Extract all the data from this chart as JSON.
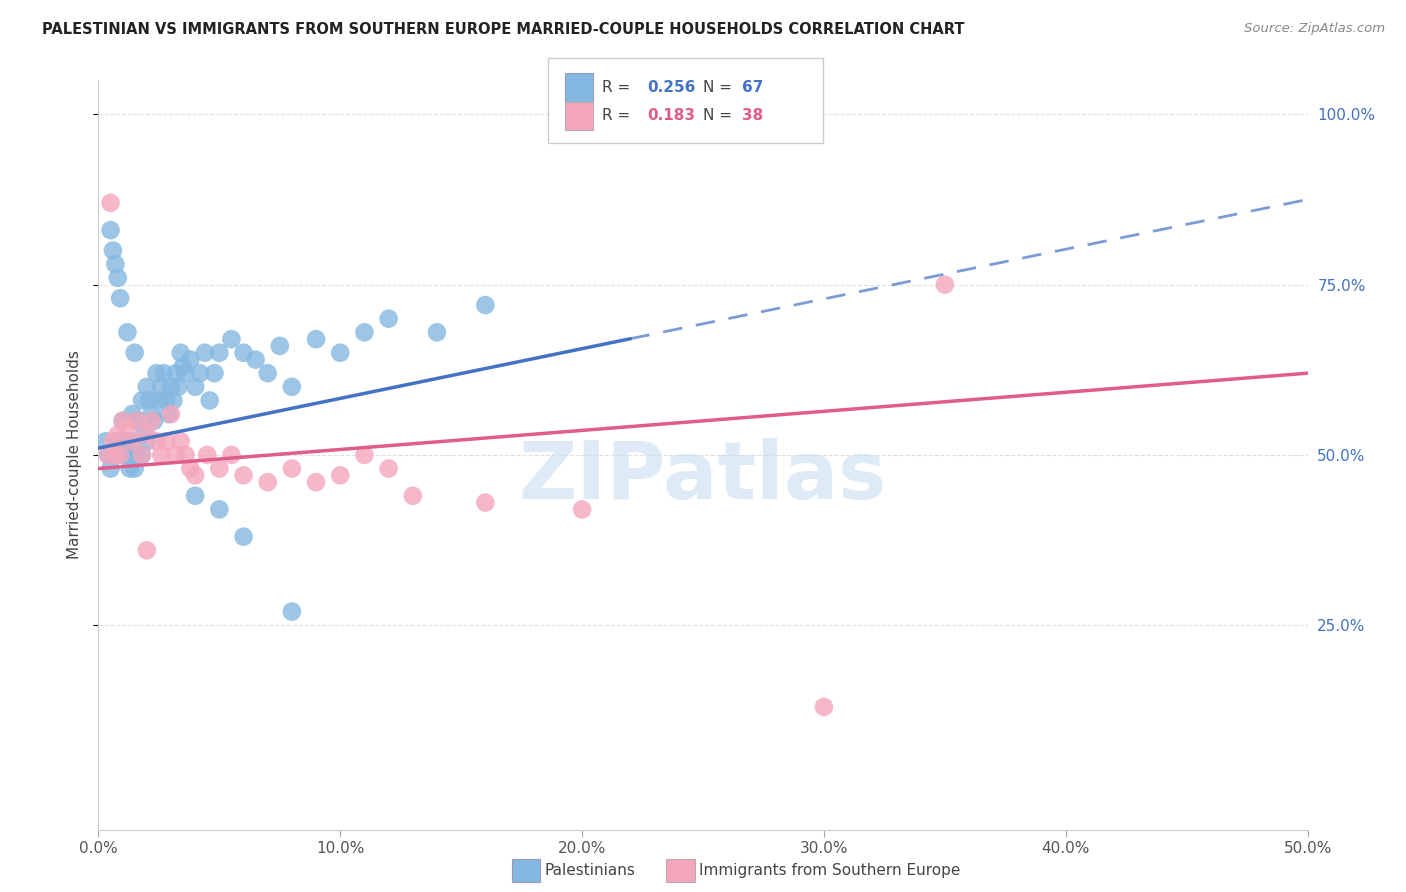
{
  "title": "PALESTINIAN VS IMMIGRANTS FROM SOUTHERN EUROPE MARRIED-COUPLE HOUSEHOLDS CORRELATION CHART",
  "source": "Source: ZipAtlas.com",
  "ylabel_label": "Married-couple Households",
  "xlim": [
    0.0,
    0.5
  ],
  "ylim": [
    -0.05,
    1.05
  ],
  "xlabel_ticks": [
    "0.0%",
    "10.0%",
    "20.0%",
    "30.0%",
    "40.0%",
    "50.0%"
  ],
  "xlabel_vals": [
    0.0,
    0.1,
    0.2,
    0.3,
    0.4,
    0.5
  ],
  "ylabel_ticks": [
    "100.0%",
    "75.0%",
    "50.0%",
    "25.0%"
  ],
  "ylabel_vals": [
    1.0,
    0.75,
    0.5,
    0.25
  ],
  "pal_color": "#85B8E0",
  "pal_line_color": "#4472C4",
  "imm_color": "#F4A7BC",
  "imm_line_color": "#E05C8A",
  "watermark_color": "#C8DCF0",
  "grid_color": "#E0E0E0",
  "bg_color": "#FFFFFF",
  "pal_R": 0.256,
  "pal_N": 67,
  "imm_R": 0.183,
  "imm_N": 38,
  "pal_x": [
    0.003,
    0.004,
    0.005,
    0.005,
    0.006,
    0.007,
    0.007,
    0.008,
    0.008,
    0.009,
    0.01,
    0.01,
    0.011,
    0.012,
    0.012,
    0.013,
    0.013,
    0.014,
    0.015,
    0.015,
    0.016,
    0.016,
    0.017,
    0.018,
    0.018,
    0.019,
    0.02,
    0.02,
    0.021,
    0.022,
    0.023,
    0.024,
    0.025,
    0.026,
    0.027,
    0.028,
    0.029,
    0.03,
    0.031,
    0.032,
    0.033,
    0.034,
    0.035,
    0.036,
    0.038,
    0.04,
    0.042,
    0.044,
    0.046,
    0.048,
    0.05,
    0.055,
    0.06,
    0.065,
    0.07,
    0.075,
    0.08,
    0.09,
    0.1,
    0.11,
    0.12,
    0.14,
    0.16,
    0.04,
    0.05,
    0.06,
    0.08
  ],
  "pal_y": [
    0.52,
    0.5,
    0.83,
    0.48,
    0.8,
    0.78,
    0.5,
    0.76,
    0.52,
    0.73,
    0.55,
    0.5,
    0.52,
    0.68,
    0.5,
    0.52,
    0.48,
    0.56,
    0.65,
    0.48,
    0.55,
    0.5,
    0.55,
    0.58,
    0.5,
    0.53,
    0.6,
    0.52,
    0.58,
    0.56,
    0.55,
    0.62,
    0.58,
    0.6,
    0.62,
    0.58,
    0.56,
    0.6,
    0.58,
    0.62,
    0.6,
    0.65,
    0.63,
    0.62,
    0.64,
    0.6,
    0.62,
    0.65,
    0.58,
    0.62,
    0.65,
    0.67,
    0.65,
    0.64,
    0.62,
    0.66,
    0.6,
    0.67,
    0.65,
    0.68,
    0.7,
    0.68,
    0.72,
    0.44,
    0.42,
    0.38,
    0.27
  ],
  "imm_x": [
    0.004,
    0.005,
    0.006,
    0.007,
    0.008,
    0.009,
    0.01,
    0.012,
    0.014,
    0.016,
    0.018,
    0.02,
    0.022,
    0.024,
    0.026,
    0.028,
    0.03,
    0.032,
    0.034,
    0.036,
    0.038,
    0.04,
    0.045,
    0.05,
    0.055,
    0.06,
    0.07,
    0.08,
    0.09,
    0.1,
    0.11,
    0.12,
    0.13,
    0.16,
    0.2,
    0.35,
    0.02,
    0.3
  ],
  "imm_y": [
    0.5,
    0.87,
    0.52,
    0.5,
    0.53,
    0.5,
    0.55,
    0.54,
    0.52,
    0.55,
    0.5,
    0.53,
    0.55,
    0.52,
    0.5,
    0.52,
    0.56,
    0.5,
    0.52,
    0.5,
    0.48,
    0.47,
    0.5,
    0.48,
    0.5,
    0.47,
    0.46,
    0.48,
    0.46,
    0.47,
    0.5,
    0.48,
    0.44,
    0.43,
    0.42,
    0.75,
    0.36,
    0.13
  ]
}
